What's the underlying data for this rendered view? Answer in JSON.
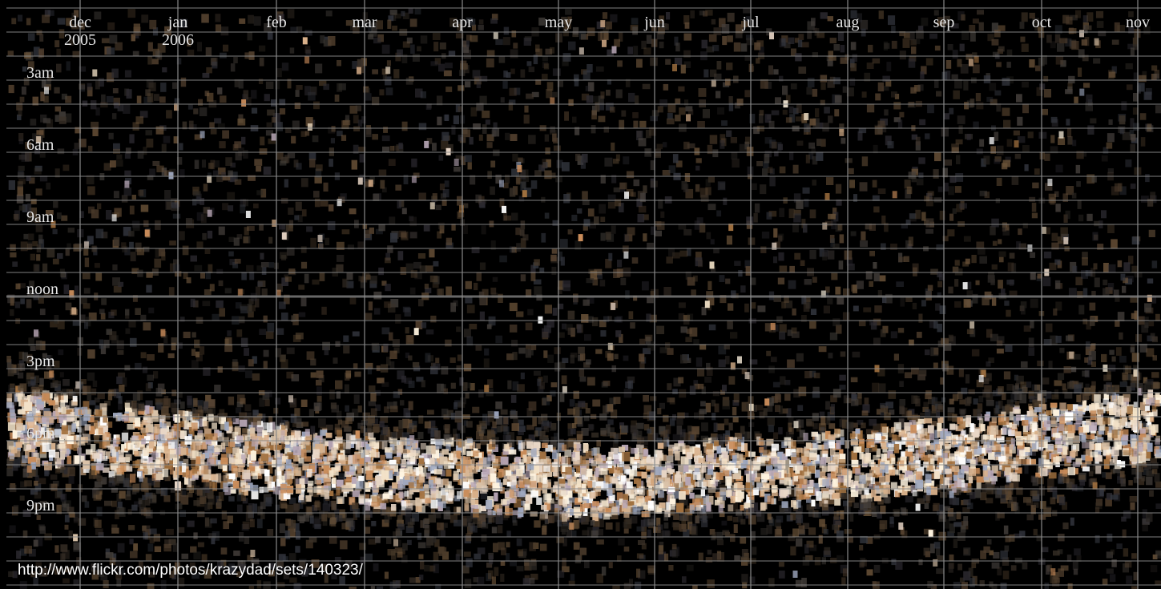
{
  "month_labels": [
    "dec",
    "jan",
    "feb",
    "mar",
    "apr",
    "may",
    "jun",
    "jul",
    "aug",
    "sep",
    "oct",
    "nov"
  ],
  "year_labels": [
    "2005",
    "2006"
  ],
  "hour_labels": [
    "3am",
    "6am",
    "9am",
    "noon",
    "3pm",
    "6pm",
    "9pm"
  ],
  "url": "http://www.flickr.com/photos/krazydad/sets/140323/"
}
